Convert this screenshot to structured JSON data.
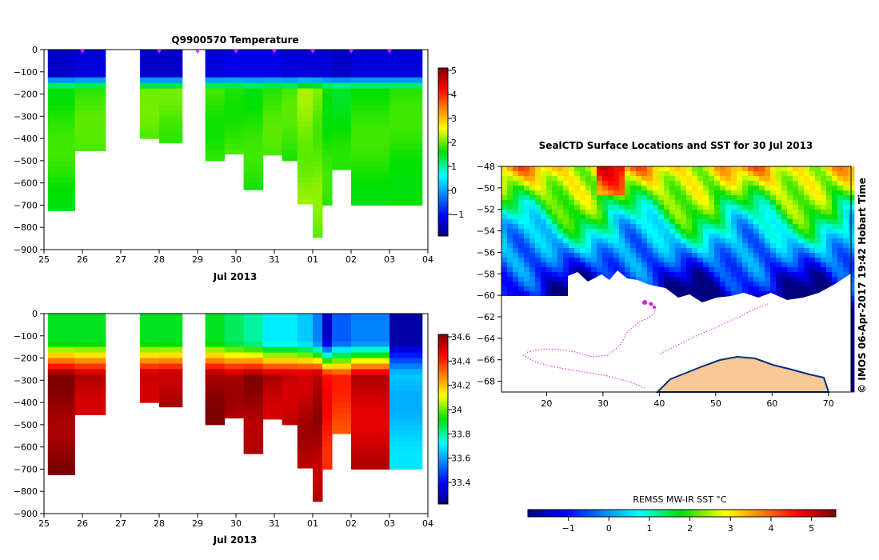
{
  "chart_data": [
    {
      "type": "heatmap",
      "name": "temperature-section",
      "title": "Q9900570  Temperature",
      "xlabel": "Jul 2013",
      "ylabel": "",
      "x_tick_labels": [
        "25",
        "26",
        "27",
        "28",
        "29",
        "30",
        "31",
        "01",
        "02",
        "03",
        "04"
      ],
      "y_tick_labels": [
        "0",
        "−100",
        "−200",
        "−300",
        "−400",
        "−500",
        "−600",
        "−700",
        "−800",
        "−900"
      ],
      "ylim": [
        -900,
        0
      ],
      "colorbar": {
        "min": -2,
        "max": 5,
        "ticks": [
          "5",
          "4",
          "3",
          "2",
          "1",
          "0",
          "−1"
        ]
      },
      "profiles": [
        {
          "start": 25.1,
          "end": 25.8,
          "max_depth": 725,
          "surface": -1.5,
          "deep": 1.6
        },
        {
          "start": 25.8,
          "end": 26.6,
          "max_depth": 455,
          "surface": -1.4,
          "deep": 1.7
        },
        {
          "start": 27.5,
          "end": 28.0,
          "max_depth": 400,
          "surface": -1.5,
          "deep": 1.8
        },
        {
          "start": 28.0,
          "end": 28.6,
          "max_depth": 420,
          "surface": -1.5,
          "deep": 1.8
        },
        {
          "start": 29.2,
          "end": 29.7,
          "max_depth": 500,
          "surface": -1.4,
          "deep": 1.7
        },
        {
          "start": 29.7,
          "end": 30.2,
          "max_depth": 470,
          "surface": -1.3,
          "deep": 1.7
        },
        {
          "start": 30.2,
          "end": 30.7,
          "max_depth": 630,
          "surface": -1.3,
          "deep": 1.6
        },
        {
          "start": 30.7,
          "end": 31.2,
          "max_depth": 475,
          "surface": -1.3,
          "deep": 1.7
        },
        {
          "start": 31.2,
          "end": 31.6,
          "max_depth": 500,
          "surface": -1.4,
          "deep": 1.7
        },
        {
          "start": 31.6,
          "end": 32.0,
          "max_depth": 695,
          "surface": -1.4,
          "deep": 2.0
        },
        {
          "start": 32.0,
          "end": 32.25,
          "max_depth": 845,
          "surface": -1.4,
          "deep": 1.9
        },
        {
          "start": 32.25,
          "end": 32.5,
          "max_depth": 700,
          "surface": -1.4,
          "deep": 1.6
        },
        {
          "start": 32.5,
          "end": 33.0,
          "max_depth": 540,
          "surface": -1.5,
          "deep": 1.5
        },
        {
          "start": 33.0,
          "end": 34.0,
          "max_depth": 700,
          "surface": -1.4,
          "deep": 1.6
        },
        {
          "start": 34.0,
          "end": 34.85,
          "max_depth": 700,
          "surface": -1.4,
          "deep": 1.6
        }
      ],
      "surface_markers": [
        26.0,
        28.0,
        29.0,
        30.0,
        31.0,
        32.0,
        33.0,
        34.0
      ]
    },
    {
      "type": "heatmap",
      "name": "salinity-section",
      "title": "",
      "xlabel": "Jul 2013",
      "x_tick_labels": [
        "25",
        "26",
        "27",
        "28",
        "29",
        "30",
        "31",
        "01",
        "02",
        "03",
        "04"
      ],
      "y_tick_labels": [
        "0",
        "−100",
        "−200",
        "−300",
        "−400",
        "−500",
        "−600",
        "−700",
        "−800",
        "−900"
      ],
      "ylim": [
        -900,
        0
      ],
      "colorbar": {
        "min": 33.25,
        "max": 34.7,
        "ticks": [
          "34.6",
          "34.4",
          "34.2",
          "34",
          "33.8",
          "33.6",
          "33.4"
        ]
      },
      "profiles": [
        {
          "start": 25.1,
          "end": 25.8,
          "max_depth": 725,
          "surface": 33.95,
          "deep": 34.68
        },
        {
          "start": 25.8,
          "end": 26.6,
          "max_depth": 455,
          "surface": 33.95,
          "deep": 34.62
        },
        {
          "start": 27.5,
          "end": 28.0,
          "max_depth": 400,
          "surface": 33.95,
          "deep": 34.62
        },
        {
          "start": 28.0,
          "end": 28.6,
          "max_depth": 420,
          "surface": 33.95,
          "deep": 34.64
        },
        {
          "start": 29.2,
          "end": 29.7,
          "max_depth": 500,
          "surface": 33.95,
          "deep": 34.66
        },
        {
          "start": 29.7,
          "end": 30.2,
          "max_depth": 470,
          "surface": 33.9,
          "deep": 34.62
        },
        {
          "start": 30.2,
          "end": 30.7,
          "max_depth": 630,
          "surface": 33.85,
          "deep": 34.66
        },
        {
          "start": 30.7,
          "end": 31.2,
          "max_depth": 475,
          "surface": 33.75,
          "deep": 34.62
        },
        {
          "start": 31.2,
          "end": 31.6,
          "max_depth": 500,
          "surface": 33.75,
          "deep": 34.62
        },
        {
          "start": 31.6,
          "end": 32.0,
          "max_depth": 695,
          "surface": 33.7,
          "deep": 34.62
        },
        {
          "start": 32.0,
          "end": 32.25,
          "max_depth": 845,
          "surface": 33.6,
          "deep": 34.64
        },
        {
          "start": 32.25,
          "end": 32.5,
          "max_depth": 700,
          "surface": 33.35,
          "deep": 34.5
        },
        {
          "start": 32.5,
          "end": 33.0,
          "max_depth": 540,
          "surface": 33.55,
          "deep": 34.45
        },
        {
          "start": 33.0,
          "end": 34.0,
          "max_depth": 700,
          "surface": 33.6,
          "deep": 34.6
        },
        {
          "start": 34.0,
          "end": 34.85,
          "max_depth": 700,
          "surface": 33.3,
          "deep": 33.7
        }
      ]
    },
    {
      "type": "heatmap",
      "name": "sst-map",
      "title": "SealCTD Surface Locations and SST for 30 Jul 2013",
      "xlabel": "",
      "ylabel": "",
      "x_tick_labels": [
        "20",
        "30",
        "40",
        "50",
        "60",
        "70"
      ],
      "y_tick_labels": [
        "−48",
        "−50",
        "−52",
        "−54",
        "−56",
        "−58",
        "−60",
        "−62",
        "−64",
        "−66",
        "−68"
      ],
      "xlim": [
        12,
        74
      ],
      "ylim": [
        -69,
        -48
      ],
      "colorbar": {
        "min": -2,
        "max": 5.6,
        "ticks": [
          "−1",
          "0",
          "1",
          "2",
          "3",
          "4",
          "5"
        ],
        "label": "REMSS MW-IR SST °C"
      },
      "side_label": "© IMOS 06-Apr-2017 19:42 Hobart Time"
    }
  ],
  "colors": {
    "track": "#e020e0",
    "land": "#f9c896",
    "coast": "#000000"
  }
}
